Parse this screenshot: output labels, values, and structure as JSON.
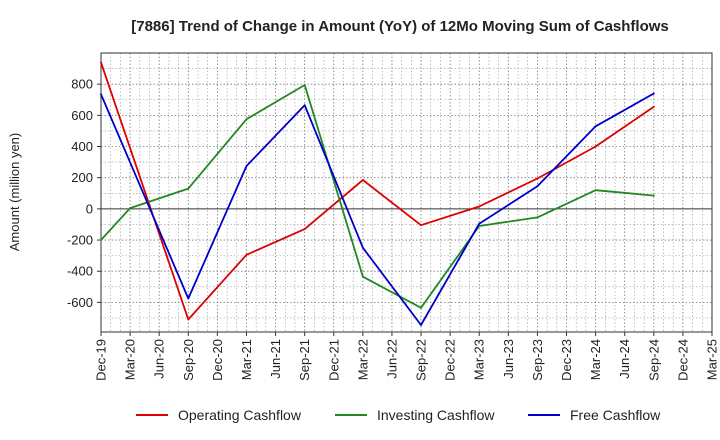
{
  "chart_data": {
    "type": "line",
    "title": "[7886]  Trend of Change in Amount (YoY) of 12Mo Moving Sum of Cashflows",
    "ylabel": "Amount (million yen)",
    "xlabel": "",
    "ylim": [
      -790,
      1000
    ],
    "yticks": [
      -600,
      -400,
      -200,
      0,
      200,
      400,
      600,
      800
    ],
    "categories": [
      "Dec-19",
      "Mar-20",
      "Jun-20",
      "Sep-20",
      "Dec-20",
      "Mar-21",
      "Jun-21",
      "Sep-21",
      "Dec-21",
      "Mar-22",
      "Jun-22",
      "Sep-22",
      "Dec-22",
      "Mar-23",
      "Jun-23",
      "Sep-23",
      "Dec-23",
      "Mar-24",
      "Jun-24",
      "Sep-24",
      "Dec-24",
      "Mar-25"
    ],
    "grid": true,
    "legend_position": "bottom",
    "series": [
      {
        "name": "Operating Cashflow",
        "color": "#dd0000",
        "values": [
          940,
          null,
          null,
          -710,
          null,
          -295,
          null,
          -130,
          null,
          185,
          null,
          -105,
          null,
          15,
          null,
          195,
          null,
          400,
          null,
          655,
          null,
          null
        ]
      },
      {
        "name": "Investing Cashflow",
        "color": "#228822",
        "values": [
          -200,
          5,
          null,
          130,
          null,
          575,
          null,
          795,
          null,
          -435,
          null,
          -635,
          null,
          -110,
          null,
          -55,
          null,
          120,
          null,
          85,
          null,
          null
        ]
      },
      {
        "name": "Free Cashflow",
        "color": "#0000cc",
        "values": [
          735,
          null,
          null,
          -575,
          null,
          275,
          null,
          665,
          null,
          -250,
          null,
          -745,
          null,
          -95,
          null,
          145,
          null,
          530,
          null,
          740,
          null,
          null
        ]
      }
    ]
  }
}
